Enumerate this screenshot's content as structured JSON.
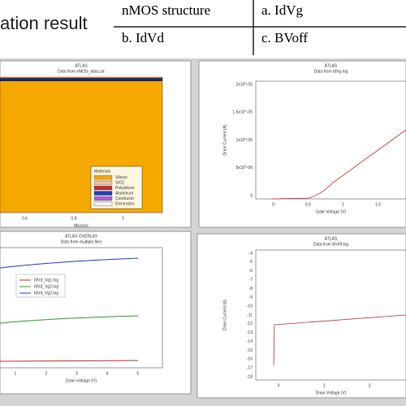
{
  "header": {
    "title": "ation result"
  },
  "table": {
    "rows": [
      [
        "nMOS structure",
        "a. IdVg"
      ],
      [
        "b. IdVd",
        "c. BVoff"
      ]
    ]
  },
  "panels": [
    {
      "title": "ATLAS",
      "subtitle": "Data from nMOS_atlas.str",
      "x_label": "Microns",
      "y_label": null,
      "x_ticks": [
        "0.6",
        "0.8",
        "1"
      ],
      "y_ticks": [],
      "legend_title": "Materials",
      "legend": [
        "Silicon",
        "SiO2",
        "Polysilicon",
        "Aluminum",
        "Conductor",
        "Electrodes"
      ]
    },
    {
      "title": "ATLAS",
      "subtitle": "Data from IdVg.log",
      "x_label": "Gate Voltage (V)",
      "y_label": "Drain Current (A)",
      "x_ticks": [
        "0",
        "0.5",
        "1",
        "1.5"
      ],
      "y_ticks": [
        "2x10^-05",
        "1.5x10^-05",
        "1x10^-05",
        "5x10^-06",
        "0"
      ],
      "legend_title": null,
      "legend": []
    },
    {
      "title": "ATLAS OVERLAY",
      "subtitle": "Data from multiple files",
      "x_label": "Drain Voltage (V)",
      "y_label": null,
      "x_ticks": [
        "1",
        "2",
        "3",
        "4",
        "5"
      ],
      "y_ticks": [],
      "legend_title": null,
      "legend": [
        "IdVd_Vg1.log",
        "IdVd_Vg2.log",
        "IdVd_Vg3.log"
      ]
    },
    {
      "title": "ATLAS",
      "subtitle": "Data from BVoff.log",
      "x_label": "Drain Voltage (V)",
      "y_label": "Drain Current (A)",
      "x_ticks": [
        "0",
        "1",
        "2"
      ],
      "y_ticks": [
        "-4",
        "-5",
        "-6",
        "-7",
        "-8",
        "-9",
        "-10",
        "-11",
        "-12",
        "-13",
        "-14",
        "-15",
        "-16",
        "-17",
        "-18"
      ],
      "legend_title": null,
      "legend": []
    }
  ]
}
